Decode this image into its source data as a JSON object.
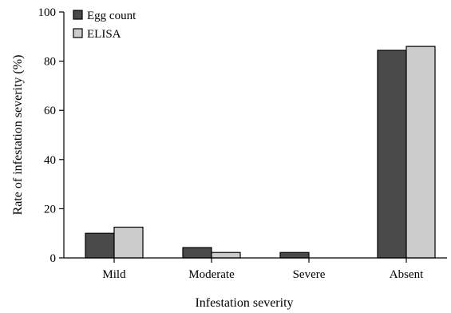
{
  "chart_data": {
    "type": "bar",
    "title": "",
    "xlabel": "Infestation severity",
    "ylabel": "Rate of infestation severity (%)",
    "ylim": [
      0,
      100
    ],
    "yticks": [
      0,
      20,
      40,
      60,
      80,
      100
    ],
    "categories": [
      "Mild",
      "Moderate",
      "Severe",
      "Absent"
    ],
    "series": [
      {
        "name": "Egg count",
        "values": [
          10,
          4.2,
          2.2,
          84.4
        ],
        "color": "#4a4a4a"
      },
      {
        "name": "ELISA",
        "values": [
          12.5,
          2.2,
          0,
          86
        ],
        "color": "#cccccc"
      }
    ],
    "legend_position": "top-left",
    "grid": false
  }
}
